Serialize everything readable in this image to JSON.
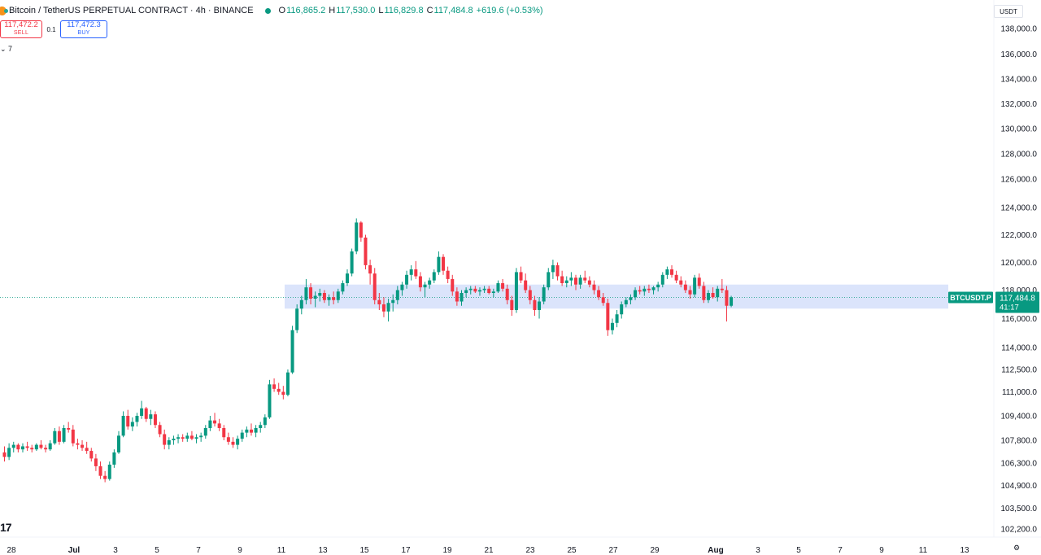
{
  "header": {
    "title": "Bitcoin / TetherUS PERPETUAL CONTRACT · 4h · BINANCE",
    "ohlc": [
      {
        "k": "O",
        "v": "116,865.2"
      },
      {
        "k": "H",
        "v": "117,530.0"
      },
      {
        "k": "L",
        "v": "116,829.8"
      },
      {
        "k": "C",
        "v": "117,484.8"
      }
    ],
    "change": "+619.6 (+0.53%)"
  },
  "trade": {
    "sell_price": "117,472.2",
    "sell_label": "SELL",
    "spread": "0.1",
    "buy_price": "117,472.3",
    "buy_label": "BUY"
  },
  "indicator_toggle": "⌄ 7",
  "currency": "USDT",
  "logo_text": "17",
  "price_axis": {
    "labels": [
      "138,000.0",
      "136,000.0",
      "134,000.0",
      "132,000.0",
      "130,000.0",
      "128,000.0",
      "126,000.0",
      "124,000.0",
      "122,000.0",
      "120,000.0",
      "118,000.0",
      "116,000.0",
      "114,000.0",
      "112,500.0",
      "111,000.0",
      "109,400.0",
      "107,800.0",
      "106,300.0",
      "104,900.0",
      "103,500.0",
      "102,200.0"
    ]
  },
  "time_axis": {
    "labels": [
      "28",
      "Jul",
      "3",
      "5",
      "7",
      "9",
      "11",
      "13",
      "15",
      "17",
      "19",
      "21",
      "23",
      "25",
      "27",
      "29",
      "Aug",
      "3",
      "5",
      "7",
      "9",
      "11",
      "13"
    ]
  },
  "last_price": {
    "symbol": "BTCUSDT.P",
    "price": "117,484.8",
    "countdown": "41:17"
  },
  "colors": {
    "up": "#089981",
    "down": "#f23645",
    "zone": "#dbe4fb",
    "tag": "#089981"
  },
  "chart_data": {
    "type": "candlestick",
    "timeframe": "4h",
    "last_close": 117484.8,
    "zone": [
      116700,
      118400
    ],
    "candles": [
      [
        107000,
        107400,
        106400,
        106700
      ],
      [
        106700,
        107600,
        106500,
        107300
      ],
      [
        107300,
        107700,
        107000,
        107500
      ],
      [
        107500,
        107600,
        107000,
        107200
      ],
      [
        107200,
        107600,
        107000,
        107400
      ],
      [
        107400,
        107700,
        107100,
        107300
      ],
      [
        107300,
        107500,
        107000,
        107200
      ],
      [
        107200,
        107600,
        107100,
        107500
      ],
      [
        107500,
        107800,
        107200,
        107300
      ],
      [
        107300,
        107500,
        107000,
        107200
      ],
      [
        107200,
        107800,
        107100,
        107600
      ],
      [
        107600,
        108600,
        107500,
        108400
      ],
      [
        108400,
        108700,
        107500,
        107700
      ],
      [
        107700,
        108800,
        107600,
        108600
      ],
      [
        108600,
        109000,
        108300,
        108500
      ],
      [
        108500,
        108800,
        107400,
        107600
      ],
      [
        107600,
        107900,
        107200,
        107500
      ],
      [
        107500,
        107800,
        107100,
        107300
      ],
      [
        107300,
        107700,
        106900,
        107100
      ],
      [
        107100,
        107300,
        106400,
        106600
      ],
      [
        106600,
        106900,
        105800,
        106100
      ],
      [
        106100,
        106400,
        105300,
        105500
      ],
      [
        105500,
        105800,
        105100,
        105300
      ],
      [
        105300,
        106400,
        105200,
        106200
      ],
      [
        106200,
        107200,
        106000,
        107000
      ],
      [
        107000,
        108400,
        106900,
        108100
      ],
      [
        108100,
        109700,
        108000,
        109400
      ],
      [
        109400,
        109800,
        108500,
        108700
      ],
      [
        108700,
        109300,
        108400,
        109000
      ],
      [
        109000,
        109600,
        108700,
        109400
      ],
      [
        109400,
        110400,
        109200,
        109900
      ],
      [
        109900,
        110000,
        109000,
        109200
      ],
      [
        109200,
        109800,
        108800,
        109500
      ],
      [
        109500,
        109700,
        108600,
        108800
      ],
      [
        108800,
        109000,
        108000,
        108200
      ],
      [
        108200,
        108500,
        107200,
        107500
      ],
      [
        107500,
        108000,
        107200,
        107800
      ],
      [
        107800,
        108100,
        107500,
        107900
      ],
      [
        107900,
        108200,
        107600,
        108000
      ],
      [
        108000,
        108200,
        107700,
        107900
      ],
      [
        107900,
        108300,
        107700,
        108100
      ],
      [
        108100,
        108400,
        107800,
        107900
      ],
      [
        107900,
        108200,
        107600,
        108000
      ],
      [
        108000,
        108300,
        107700,
        108100
      ],
      [
        108100,
        108800,
        107900,
        108600
      ],
      [
        108600,
        109400,
        108400,
        109100
      ],
      [
        109100,
        109600,
        108700,
        108900
      ],
      [
        108900,
        109200,
        108400,
        108600
      ],
      [
        108600,
        108800,
        107800,
        108000
      ],
      [
        108000,
        108300,
        107500,
        107700
      ],
      [
        107700,
        108000,
        107300,
        107500
      ],
      [
        107500,
        108100,
        107200,
        107900
      ],
      [
        107900,
        108500,
        107700,
        108300
      ],
      [
        108300,
        108700,
        108000,
        108500
      ],
      [
        108500,
        108900,
        108100,
        108300
      ],
      [
        108300,
        108800,
        108000,
        108600
      ],
      [
        108600,
        109000,
        108300,
        108800
      ],
      [
        108800,
        109500,
        108600,
        109300
      ],
      [
        109300,
        111800,
        109200,
        111500
      ],
      [
        111500,
        111900,
        111000,
        111200
      ],
      [
        111200,
        111600,
        110800,
        111000
      ],
      [
        111000,
        111400,
        110500,
        110800
      ],
      [
        110800,
        112500,
        110700,
        112300
      ],
      [
        112300,
        115500,
        112200,
        115200
      ],
      [
        115200,
        117000,
        115000,
        116700
      ],
      [
        116700,
        117600,
        116300,
        117300
      ],
      [
        117300,
        118800,
        117000,
        118200
      ],
      [
        118200,
        118500,
        117000,
        117400
      ],
      [
        117400,
        117900,
        116800,
        117600
      ],
      [
        117600,
        118100,
        117200,
        117800
      ],
      [
        117800,
        118000,
        117100,
        117300
      ],
      [
        117300,
        117700,
        116900,
        117500
      ],
      [
        117500,
        117900,
        117000,
        117300
      ],
      [
        117300,
        118100,
        117100,
        117900
      ],
      [
        117900,
        118700,
        117700,
        118500
      ],
      [
        118500,
        119500,
        118300,
        119200
      ],
      [
        119200,
        121000,
        119000,
        120800
      ],
      [
        120800,
        123200,
        120600,
        122900
      ],
      [
        122900,
        123000,
        121500,
        121800
      ],
      [
        121800,
        122000,
        119500,
        119800
      ],
      [
        119800,
        120200,
        118400,
        119200
      ],
      [
        119200,
        119600,
        117000,
        117300
      ],
      [
        117300,
        117800,
        116600,
        117000
      ],
      [
        117000,
        117500,
        116100,
        116500
      ],
      [
        116500,
        117400,
        115800,
        117100
      ],
      [
        117100,
        117700,
        116500,
        117300
      ],
      [
        117300,
        118300,
        117000,
        118000
      ],
      [
        118000,
        118600,
        117600,
        118400
      ],
      [
        118400,
        119400,
        118100,
        119100
      ],
      [
        119100,
        119800,
        118700,
        119500
      ],
      [
        119500,
        120100,
        118800,
        119000
      ],
      [
        119000,
        119300,
        117900,
        118200
      ],
      [
        118200,
        118600,
        117500,
        118400
      ],
      [
        118400,
        118900,
        118100,
        118700
      ],
      [
        118700,
        119500,
        118500,
        119300
      ],
      [
        119300,
        120800,
        119100,
        120400
      ],
      [
        120400,
        120600,
        119100,
        119400
      ],
      [
        119400,
        119700,
        118500,
        118800
      ],
      [
        118800,
        119100,
        117600,
        117900
      ],
      [
        117900,
        118200,
        116900,
        117200
      ],
      [
        117200,
        118000,
        116900,
        117800
      ],
      [
        117800,
        118200,
        117500,
        118000
      ],
      [
        118000,
        118300,
        117700,
        118100
      ],
      [
        118100,
        118300,
        117800,
        117900
      ],
      [
        117900,
        118200,
        117600,
        118000
      ],
      [
        118000,
        118300,
        117800,
        118100
      ],
      [
        118100,
        118300,
        117700,
        117800
      ],
      [
        117800,
        118100,
        117500,
        117900
      ],
      [
        117900,
        118700,
        117800,
        118500
      ],
      [
        118500,
        118800,
        117900,
        118100
      ],
      [
        118100,
        118400,
        117000,
        117300
      ],
      [
        117300,
        117600,
        116200,
        116600
      ],
      [
        116600,
        119600,
        116400,
        119300
      ],
      [
        119300,
        119700,
        118500,
        118700
      ],
      [
        118700,
        119200,
        117800,
        118000
      ],
      [
        118000,
        118300,
        117000,
        117300
      ],
      [
        117300,
        117600,
        116200,
        116600
      ],
      [
        116600,
        117500,
        116000,
        117200
      ],
      [
        117200,
        118400,
        117000,
        118200
      ],
      [
        118200,
        119600,
        118000,
        119300
      ],
      [
        119300,
        120200,
        118800,
        119800
      ],
      [
        119800,
        120000,
        118700,
        119000
      ],
      [
        119000,
        119400,
        118300,
        118500
      ],
      [
        118500,
        119000,
        118200,
        118700
      ],
      [
        118700,
        119300,
        118300,
        118900
      ],
      [
        118900,
        119100,
        118000,
        118400
      ],
      [
        118400,
        119100,
        118100,
        118900
      ],
      [
        118900,
        119400,
        118500,
        118700
      ],
      [
        118700,
        119000,
        118200,
        118400
      ],
      [
        118400,
        118700,
        117700,
        118000
      ],
      [
        118000,
        118300,
        117300,
        117500
      ],
      [
        117500,
        117800,
        116900,
        117100
      ],
      [
        117100,
        117400,
        114800,
        115200
      ],
      [
        115200,
        116000,
        114900,
        115700
      ],
      [
        115700,
        116600,
        115400,
        116300
      ],
      [
        116300,
        117200,
        116000,
        117000
      ],
      [
        117000,
        117500,
        116800,
        117300
      ],
      [
        117300,
        117700,
        117000,
        117500
      ],
      [
        117500,
        118200,
        117300,
        118000
      ],
      [
        118000,
        118300,
        117700,
        117900
      ],
      [
        117900,
        118300,
        117600,
        118100
      ],
      [
        118100,
        118400,
        117800,
        118000
      ],
      [
        118000,
        118300,
        117700,
        118200
      ],
      [
        118200,
        118600,
        117900,
        118400
      ],
      [
        118400,
        119300,
        118200,
        119100
      ],
      [
        119100,
        119700,
        118800,
        119500
      ],
      [
        119500,
        119800,
        118900,
        119100
      ],
      [
        119100,
        119400,
        118500,
        118700
      ],
      [
        118700,
        119000,
        118200,
        118400
      ],
      [
        118400,
        118700,
        117800,
        118000
      ],
      [
        118000,
        118300,
        117400,
        117700
      ],
      [
        117700,
        119100,
        117500,
        118900
      ],
      [
        118900,
        119200,
        118100,
        118300
      ],
      [
        118300,
        118600,
        117100,
        117300
      ],
      [
        117300,
        118000,
        117100,
        117800
      ],
      [
        117800,
        118200,
        117400,
        117500
      ],
      [
        117500,
        118300,
        117200,
        118100
      ],
      [
        118100,
        118800,
        117800,
        118000
      ],
      [
        118000,
        118300,
        115800,
        116900
      ],
      [
        116900,
        117600,
        116800,
        117500
      ]
    ]
  }
}
